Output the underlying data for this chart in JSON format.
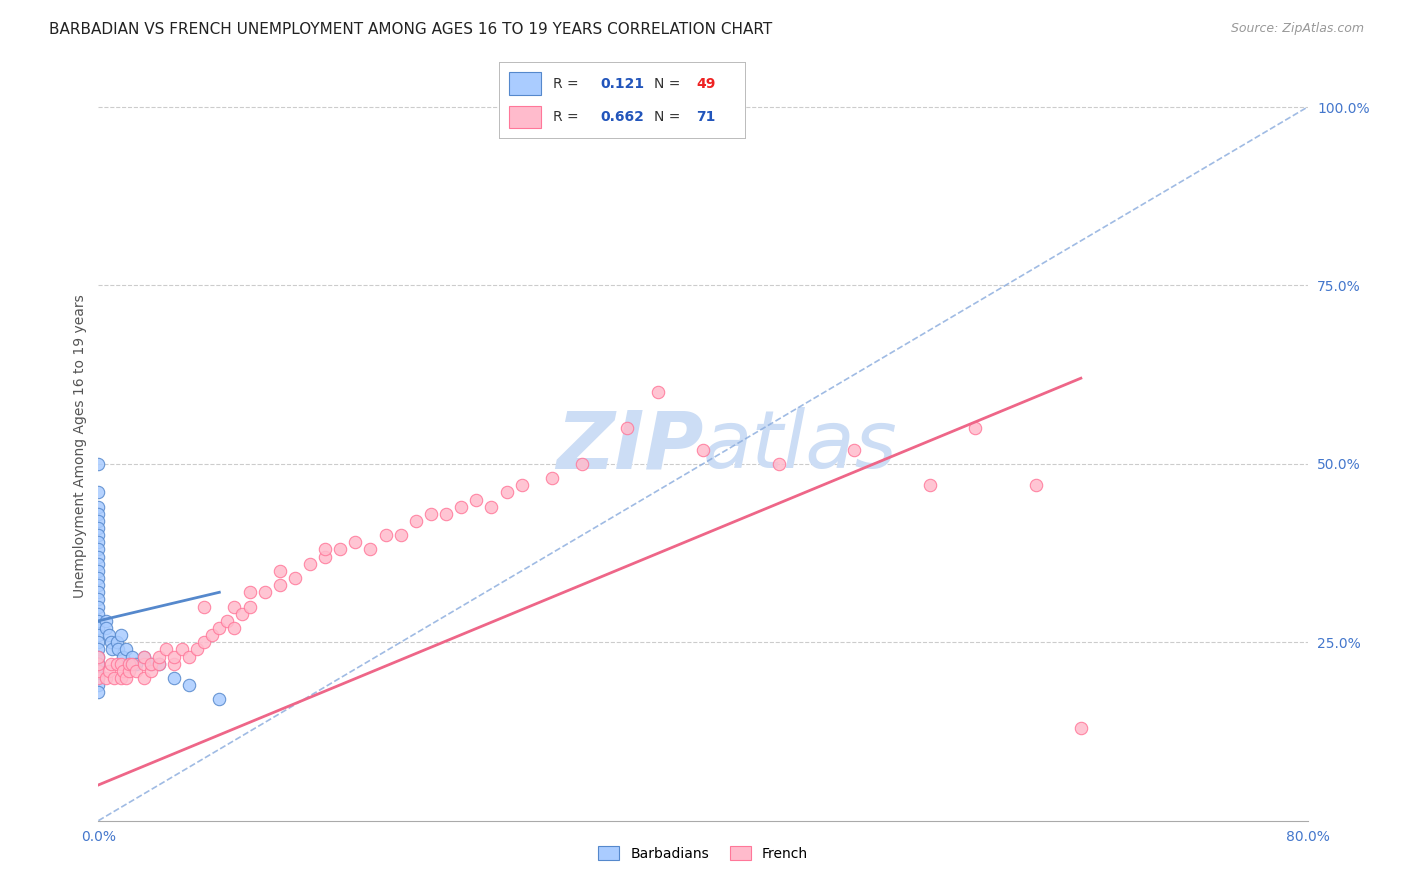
{
  "title": "BARBADIAN VS FRENCH UNEMPLOYMENT AMONG AGES 16 TO 19 YEARS CORRELATION CHART",
  "source": "Source: ZipAtlas.com",
  "ylabel": "Unemployment Among Ages 16 to 19 years",
  "xlim": [
    0.0,
    0.8
  ],
  "ylim": [
    0.0,
    1.05
  ],
  "yticks_right": [
    0.25,
    0.5,
    0.75,
    1.0
  ],
  "ytick_right_labels": [
    "25.0%",
    "50.0%",
    "75.0%",
    "100.0%"
  ],
  "barbadian_color": "#aaccff",
  "barbadian_edge_color": "#5588cc",
  "french_color": "#ffbbcc",
  "french_edge_color": "#ff7799",
  "blue_line_color": "#88aadd",
  "pink_line_color": "#ee6688",
  "R_barbadian": "0.121",
  "N_barbadian": "49",
  "R_french": "0.662",
  "N_french": "71",
  "legend_blue_color": "#2255bb",
  "legend_red_color": "#ee2222",
  "watermark_color": "#ccddf5",
  "title_fontsize": 11,
  "axis_label_fontsize": 10,
  "tick_label_fontsize": 10,
  "tick_color": "#4477cc",
  "barbadian_scatter_x": [
    0.0,
    0.0,
    0.0,
    0.0,
    0.0,
    0.0,
    0.0,
    0.0,
    0.0,
    0.0,
    0.0,
    0.0,
    0.0,
    0.0,
    0.0,
    0.0,
    0.0,
    0.0,
    0.0,
    0.0,
    0.0,
    0.0,
    0.0,
    0.0,
    0.0,
    0.0,
    0.0,
    0.0,
    0.0,
    0.0,
    0.005,
    0.005,
    0.007,
    0.008,
    0.009,
    0.012,
    0.013,
    0.015,
    0.016,
    0.018,
    0.02,
    0.022,
    0.025,
    0.03,
    0.035,
    0.04,
    0.05,
    0.06,
    0.08
  ],
  "barbadian_scatter_y": [
    0.5,
    0.46,
    0.44,
    0.43,
    0.42,
    0.41,
    0.4,
    0.39,
    0.38,
    0.37,
    0.36,
    0.35,
    0.34,
    0.33,
    0.32,
    0.31,
    0.3,
    0.29,
    0.28,
    0.27,
    0.26,
    0.25,
    0.24,
    0.23,
    0.22,
    0.22,
    0.21,
    0.2,
    0.19,
    0.18,
    0.28,
    0.27,
    0.26,
    0.25,
    0.24,
    0.25,
    0.24,
    0.26,
    0.23,
    0.24,
    0.22,
    0.23,
    0.22,
    0.23,
    0.22,
    0.22,
    0.2,
    0.19,
    0.17
  ],
  "french_scatter_x": [
    0.0,
    0.0,
    0.0,
    0.0,
    0.005,
    0.007,
    0.008,
    0.01,
    0.012,
    0.015,
    0.015,
    0.016,
    0.018,
    0.02,
    0.02,
    0.022,
    0.025,
    0.03,
    0.03,
    0.03,
    0.035,
    0.035,
    0.04,
    0.04,
    0.045,
    0.05,
    0.05,
    0.055,
    0.06,
    0.065,
    0.07,
    0.07,
    0.075,
    0.08,
    0.085,
    0.09,
    0.09,
    0.095,
    0.1,
    0.1,
    0.11,
    0.12,
    0.12,
    0.13,
    0.14,
    0.15,
    0.15,
    0.16,
    0.17,
    0.18,
    0.19,
    0.2,
    0.21,
    0.22,
    0.23,
    0.24,
    0.25,
    0.26,
    0.27,
    0.28,
    0.3,
    0.32,
    0.35,
    0.37,
    0.4,
    0.45,
    0.5,
    0.55,
    0.58,
    0.62,
    0.65
  ],
  "french_scatter_y": [
    0.2,
    0.21,
    0.22,
    0.23,
    0.2,
    0.21,
    0.22,
    0.2,
    0.22,
    0.2,
    0.22,
    0.21,
    0.2,
    0.21,
    0.22,
    0.22,
    0.21,
    0.2,
    0.22,
    0.23,
    0.21,
    0.22,
    0.22,
    0.23,
    0.24,
    0.22,
    0.23,
    0.24,
    0.23,
    0.24,
    0.25,
    0.3,
    0.26,
    0.27,
    0.28,
    0.27,
    0.3,
    0.29,
    0.3,
    0.32,
    0.32,
    0.33,
    0.35,
    0.34,
    0.36,
    0.37,
    0.38,
    0.38,
    0.39,
    0.38,
    0.4,
    0.4,
    0.42,
    0.43,
    0.43,
    0.44,
    0.45,
    0.44,
    0.46,
    0.47,
    0.48,
    0.5,
    0.55,
    0.6,
    0.52,
    0.5,
    0.52,
    0.47,
    0.55,
    0.47,
    0.13
  ],
  "barbadian_trend_x": [
    0.0,
    0.08
  ],
  "barbadian_trend_y": [
    0.28,
    0.32
  ],
  "french_trend_x": [
    0.0,
    0.65
  ],
  "french_trend_y": [
    0.05,
    0.62
  ],
  "diag_trend_x": [
    0.0,
    0.8
  ],
  "diag_trend_y": [
    0.0,
    1.0
  ]
}
